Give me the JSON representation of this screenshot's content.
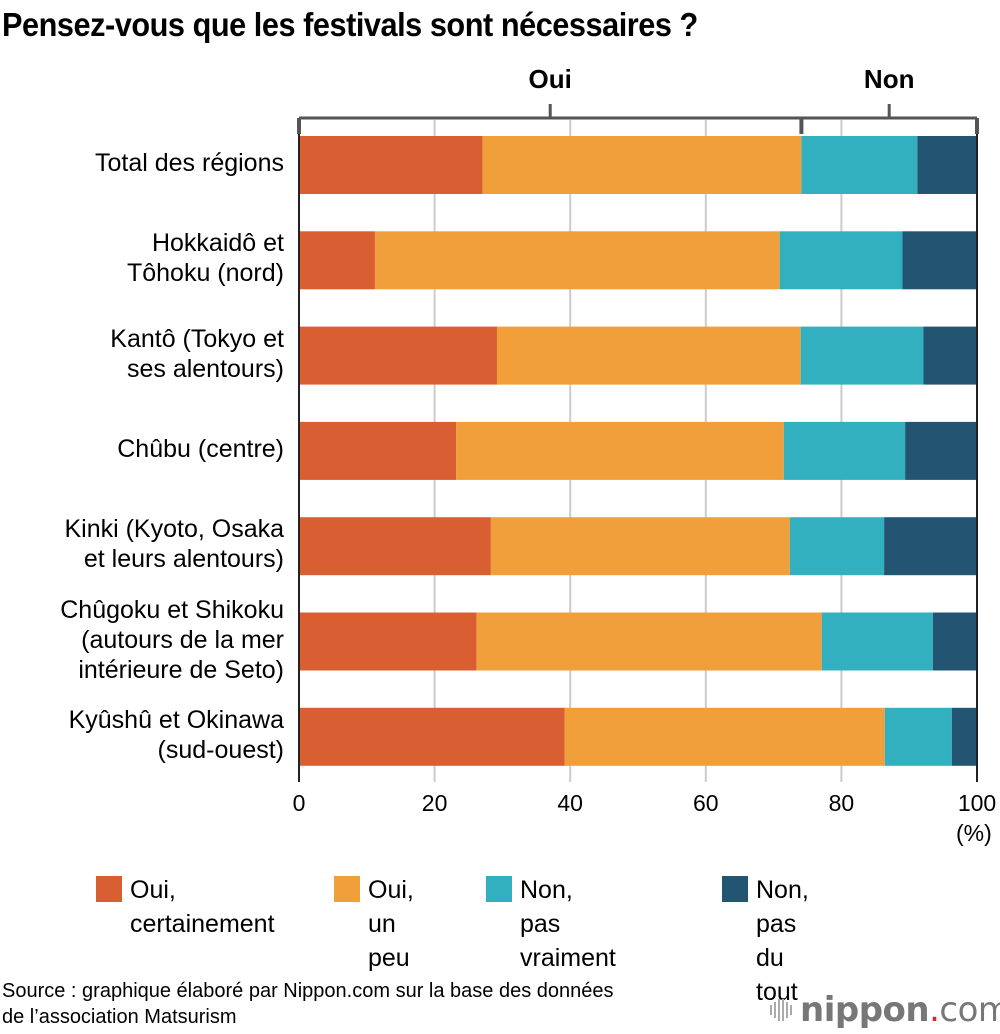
{
  "chart_data": {
    "type": "bar",
    "orientation": "horizontal",
    "stacked": true,
    "title": "Pensez-vous que les festivals sont nécessaires ?",
    "xlabel": "",
    "ylabel": "",
    "unit_label": "(%)",
    "xlim": [
      0,
      100
    ],
    "xticks": [
      "0",
      "20",
      "40",
      "60",
      "80",
      "100"
    ],
    "grid": true,
    "categories": [
      "Total des régions",
      "Hokkaidô et\nTôhoku (nord)",
      "Kantô (Tokyo et\nses alentours)",
      "Chûbu (centre)",
      "Kinki (Kyoto, Osaka\net leurs alentours)",
      "Chûgoku et Shikoku\n(autours de la mer\nintérieure de Seto)",
      "Kyûshû et Okinawa\n(sud-ouest)"
    ],
    "series": [
      {
        "name": "Oui,\ncertainement",
        "color": "#d95f33",
        "values": [
          27.1,
          11.2,
          29.2,
          23.2,
          28.3,
          26.2,
          39.2
        ]
      },
      {
        "name": "Oui,\nun peu",
        "color": "#f09f3a",
        "values": [
          47.0,
          59.7,
          44.8,
          48.3,
          44.1,
          50.9,
          47.2
        ]
      },
      {
        "name": "Non,\npas vraiment",
        "color": "#33b0bf",
        "values": [
          17.1,
          18.1,
          18.1,
          17.9,
          13.9,
          16.4,
          9.9
        ]
      },
      {
        "name": "Non,\npas du tout",
        "color": "#235573",
        "values": [
          8.8,
          11.0,
          7.9,
          10.6,
          13.7,
          6.5,
          3.7
        ]
      }
    ],
    "group_brackets": [
      {
        "label": "Oui",
        "from": 0,
        "to": 74.1
      },
      {
        "label": "Non",
        "from": 74.1,
        "to": 100
      }
    ],
    "legend_position": "bottom"
  },
  "source": "Source : graphique élaboré par Nippon.com sur la base des données\nde l’association Matsurism",
  "logo": {
    "main": "nippon",
    "dot": ".",
    "suffix": "com"
  }
}
